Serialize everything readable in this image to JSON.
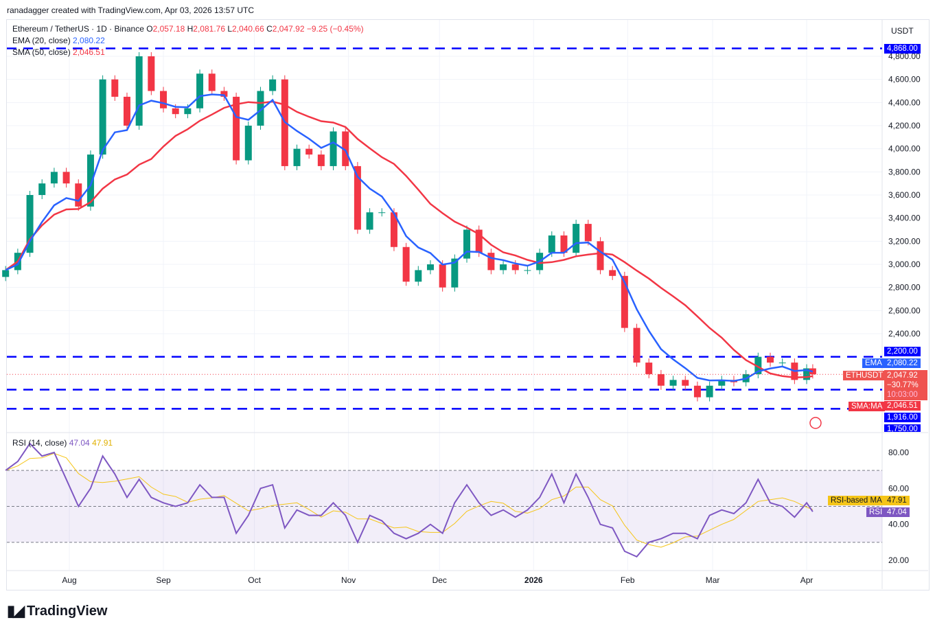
{
  "credit": "ranadagger created with TradingView.com, Apr 03, 2026 13:57 UTC",
  "legend": {
    "symbol": "Ethereum / TetherUS · 1D · Binance",
    "o_label": "O",
    "o": "2,057.18",
    "h_label": "H",
    "h": "2,081.76",
    "l_label": "L",
    "l": "2,040.66",
    "c_label": "C",
    "c": "2,047.92",
    "change": "−9.25 (−0.45%)",
    "ema_label": "EMA (20, close)",
    "ema_value": "2,080.22",
    "sma_label": "SMA (50, close)",
    "sma_value": "2,046.51",
    "rsi_label": "RSI (14, close)",
    "rsi_value": "47.04",
    "rsi_ma_value": "47.91"
  },
  "currency": "USDT",
  "price_labels": {
    "l4868": "4,868.00",
    "l2200": "2,200.00",
    "ema_tag": "EMA",
    "ema": "2,080.22",
    "sym_tag": "ETHUSDT",
    "last": "2,047.92",
    "pct": "−30.77%",
    "countdown": "10:03:00",
    "sma_tag": "SMA:MA",
    "sma": "2,046.51",
    "l1916": "1,916.00",
    "l1750": "1,750.00"
  },
  "rsi_labels": {
    "ma_tag": "RSI-based MA",
    "ma": "47.91",
    "rsi_tag": "RSI",
    "rsi": "47.04"
  },
  "colors": {
    "up": "#089981",
    "down": "#f23645",
    "ema": "#2962ff",
    "sma": "#f23645",
    "level": "#0000ff",
    "rsi": "#7e57c2",
    "rsi_ma": "#f5c518"
  },
  "logo": "TradingView",
  "chart_data": [
    {
      "type": "candlestick",
      "title": "Ethereum / TetherUS · 1D · Binance",
      "y_ticks": [
        2400,
        2600,
        2800,
        3000,
        3200,
        3400,
        3600,
        3800,
        4000,
        4200,
        4400,
        4600,
        4800
      ],
      "x_ticks": [
        {
          "label": "Aug",
          "date": "2025-08-01"
        },
        {
          "label": "Sep",
          "date": "2025-09-01"
        },
        {
          "label": "Oct",
          "date": "2025-10-01"
        },
        {
          "label": "Nov",
          "date": "2025-11-01"
        },
        {
          "label": "Dec",
          "date": "2025-12-01"
        },
        {
          "label": "2026",
          "date": "2026-01-01"
        },
        {
          "label": "Feb",
          "date": "2026-02-01"
        },
        {
          "label": "Mar",
          "date": "2026-03-01"
        },
        {
          "label": "Apr",
          "date": "2026-04-01"
        }
      ],
      "horizontal_levels": [
        4868,
        2200,
        1916,
        1750
      ],
      "dates": [
        "2025-07-11",
        "2025-07-15",
        "2025-07-19",
        "2025-07-23",
        "2025-07-27",
        "2025-07-31",
        "2025-08-04",
        "2025-08-08",
        "2025-08-12",
        "2025-08-16",
        "2025-08-20",
        "2025-08-24",
        "2025-08-28",
        "2025-09-01",
        "2025-09-05",
        "2025-09-09",
        "2025-09-13",
        "2025-09-17",
        "2025-09-21",
        "2025-09-25",
        "2025-09-29",
        "2025-10-03",
        "2025-10-07",
        "2025-10-11",
        "2025-10-15",
        "2025-10-19",
        "2025-10-23",
        "2025-10-27",
        "2025-10-31",
        "2025-11-04",
        "2025-11-08",
        "2025-11-12",
        "2025-11-16",
        "2025-11-20",
        "2025-11-24",
        "2025-11-28",
        "2025-12-02",
        "2025-12-06",
        "2025-12-10",
        "2025-12-14",
        "2025-12-18",
        "2025-12-22",
        "2025-12-26",
        "2025-12-30",
        "2026-01-03",
        "2026-01-07",
        "2026-01-11",
        "2026-01-15",
        "2026-01-19",
        "2026-01-23",
        "2026-01-27",
        "2026-01-31",
        "2026-02-04",
        "2026-02-08",
        "2026-02-12",
        "2026-02-16",
        "2026-02-20",
        "2026-02-24",
        "2026-02-28",
        "2026-03-04",
        "2026-03-08",
        "2026-03-12",
        "2026-03-16",
        "2026-03-20",
        "2026-03-24",
        "2026-03-28",
        "2026-04-01",
        "2026-04-03"
      ],
      "close": [
        2950,
        3100,
        3600,
        3700,
        3800,
        3700,
        3500,
        3950,
        4600,
        4450,
        4200,
        4800,
        4500,
        4350,
        4300,
        4350,
        4650,
        4500,
        4450,
        3900,
        4200,
        4500,
        4600,
        3850,
        4000,
        3950,
        3850,
        4150,
        3850,
        3300,
        3450,
        3450,
        3150,
        2850,
        2950,
        3000,
        2800,
        3050,
        3300,
        3100,
        2950,
        3000,
        2950,
        2950,
        3100,
        3250,
        3100,
        3350,
        3200,
        2950,
        2900,
        2450,
        2150,
        2050,
        1950,
        2000,
        1950,
        1850,
        1950,
        2000,
        1980,
        2050,
        2200,
        2150,
        2150,
        2000,
        2100,
        2047.92
      ],
      "rsi": [
        70,
        75,
        85,
        78,
        80,
        65,
        50,
        60,
        78,
        68,
        55,
        65,
        55,
        52,
        50,
        52,
        62,
        55,
        55,
        35,
        45,
        60,
        62,
        38,
        48,
        45,
        45,
        52,
        45,
        30,
        45,
        42,
        35,
        32,
        35,
        40,
        35,
        52,
        62,
        52,
        45,
        48,
        44,
        48,
        55,
        68,
        52,
        68,
        55,
        40,
        38,
        25,
        22,
        30,
        32,
        35,
        35,
        32,
        45,
        48,
        46,
        52,
        65,
        52,
        50,
        44,
        52,
        47.04
      ],
      "rsi_levels": [
        70,
        50,
        30
      ],
      "rsi_ticks": [
        20,
        40,
        60,
        80
      ]
    }
  ]
}
